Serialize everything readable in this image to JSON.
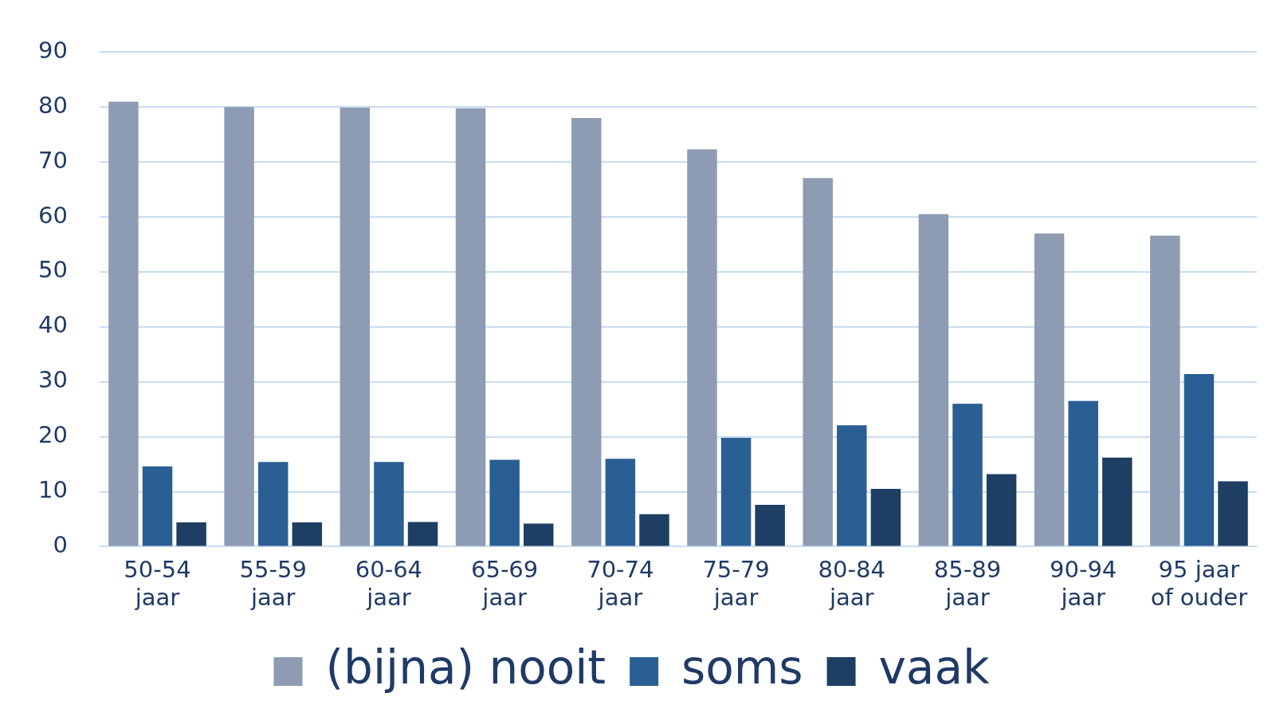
{
  "chart_data": {
    "type": "bar",
    "categories": [
      "50-54 jaar",
      "55-59 jaar",
      "60-64 jaar",
      "65-69 jaar",
      "70-74 jaar",
      "75-79 jaar",
      "80-84 jaar",
      "85-89 jaar",
      "90-94 jaar",
      "95 jaar of ouder"
    ],
    "series": [
      {
        "name": "(bijna) nooit",
        "color": "#8e9cb3",
        "values": [
          81.0,
          80.0,
          79.9,
          79.8,
          78.0,
          72.3,
          67.1,
          60.5,
          57.0,
          56.6
        ]
      },
      {
        "name": "soms",
        "color": "#2a5f94",
        "values": [
          14.6,
          15.4,
          15.4,
          15.8,
          16.0,
          19.8,
          22.1,
          26.0,
          26.5,
          31.4
        ]
      },
      {
        "name": "vaak",
        "color": "#1e3f63",
        "values": [
          4.4,
          4.4,
          4.5,
          4.2,
          5.9,
          7.6,
          10.5,
          13.2,
          16.2,
          11.9
        ]
      }
    ],
    "ylim": [
      0,
      90
    ],
    "yticks": [
      0,
      10,
      20,
      30,
      40,
      50,
      60,
      70,
      80,
      90
    ],
    "grid": "y",
    "legend": "bottom"
  }
}
